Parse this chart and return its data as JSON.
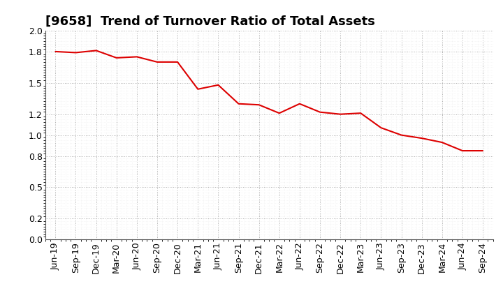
{
  "title": "[9658]  Trend of Turnover Ratio of Total Assets",
  "line_color": "#dd0000",
  "background_color": "#ffffff",
  "grid_color": "#999999",
  "ylim": [
    0.0,
    2.0
  ],
  "labels": [
    "Jun-19",
    "Sep-19",
    "Dec-19",
    "Mar-20",
    "Jun-20",
    "Sep-20",
    "Dec-20",
    "Mar-21",
    "Jun-21",
    "Sep-21",
    "Dec-21",
    "Mar-22",
    "Jun-22",
    "Sep-22",
    "Dec-22",
    "Mar-23",
    "Jun-23",
    "Sep-23",
    "Dec-23",
    "Mar-24",
    "Jun-24",
    "Sep-24"
  ],
  "values": [
    1.8,
    1.79,
    1.81,
    1.74,
    1.75,
    1.7,
    1.7,
    1.44,
    1.48,
    1.3,
    1.29,
    1.21,
    1.3,
    1.22,
    1.2,
    1.21,
    1.07,
    1.0,
    0.97,
    0.93,
    0.85,
    0.85
  ],
  "ytick_values": [
    0.0,
    0.2,
    0.5,
    0.8,
    1.0,
    1.2,
    1.5,
    1.8,
    2.0
  ],
  "title_fontsize": 13,
  "tick_fontsize": 9,
  "linewidth": 1.5,
  "figsize": [
    7.2,
    4.4
  ],
  "dpi": 100
}
